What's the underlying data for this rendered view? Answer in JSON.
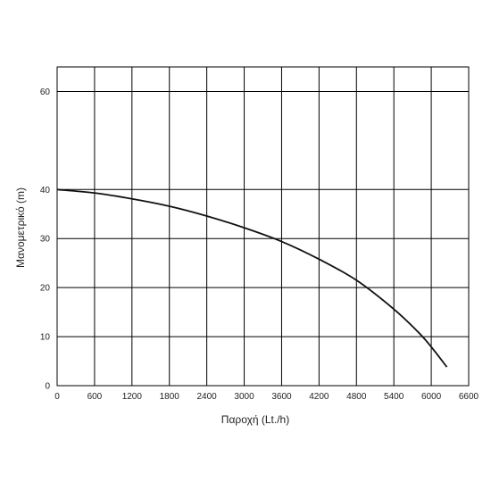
{
  "chart_data": {
    "type": "line",
    "title": "",
    "xlabel": "Παροχή (Lt./h)",
    "ylabel": "Μανομετρικό (m)",
    "xlim": [
      0,
      6600
    ],
    "ylim": [
      0,
      65
    ],
    "xticks": [
      0,
      600,
      1200,
      1800,
      2400,
      3000,
      3600,
      4200,
      4800,
      5400,
      6000,
      6600
    ],
    "yticks": [
      0,
      10,
      20,
      30,
      40,
      60
    ],
    "grid": true,
    "series": [
      {
        "color": "#111111",
        "x": [
          0,
          600,
          1200,
          1800,
          2400,
          3000,
          3600,
          4200,
          4800,
          5400,
          5800,
          6000,
          6250
        ],
        "y": [
          40,
          39.3,
          38.1,
          36.6,
          34.6,
          32.2,
          29.4,
          25.8,
          21.5,
          15.6,
          10.8,
          7.9,
          3.8
        ]
      }
    ]
  }
}
